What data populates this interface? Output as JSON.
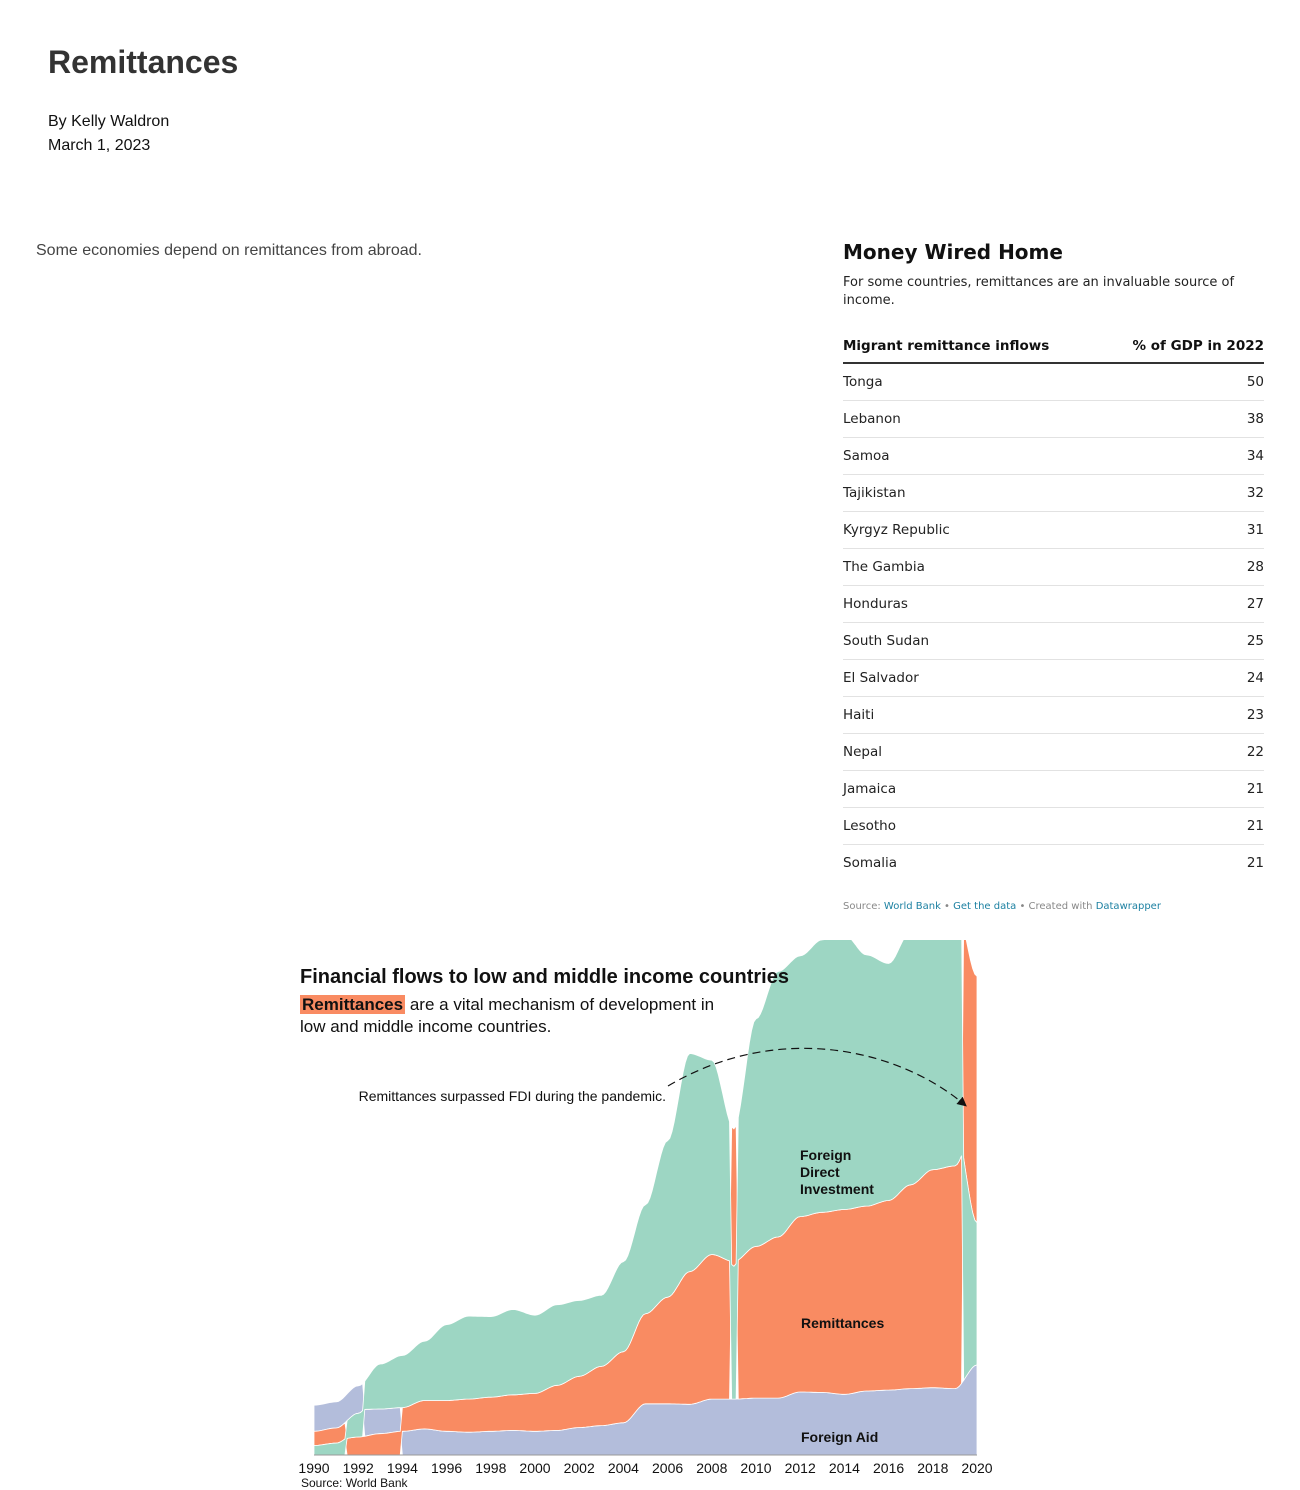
{
  "page": {
    "title": "Remittances",
    "author": "By Kelly Waldron",
    "date": "March 1, 2023",
    "intro": "Some economies depend on remittances from abroad."
  },
  "table": {
    "title": "Money Wired Home",
    "subtitle": "For some countries, remittances are an invaluable source of income.",
    "col1": "Migrant remittance inflows",
    "col2": "% of GDP in 2022",
    "rows": [
      {
        "country": "Tonga",
        "value": "50"
      },
      {
        "country": "Lebanon",
        "value": "38"
      },
      {
        "country": "Samoa",
        "value": "34"
      },
      {
        "country": "Tajikistan",
        "value": "32"
      },
      {
        "country": "Kyrgyz Republic",
        "value": "31"
      },
      {
        "country": "The Gambia",
        "value": "28"
      },
      {
        "country": "Honduras",
        "value": "27"
      },
      {
        "country": "South Sudan",
        "value": "25"
      },
      {
        "country": "El Salvador",
        "value": "24"
      },
      {
        "country": "Haiti",
        "value": "23"
      },
      {
        "country": "Nepal",
        "value": "22"
      },
      {
        "country": "Jamaica",
        "value": "21"
      },
      {
        "country": "Lesotho",
        "value": "21"
      },
      {
        "country": "Somalia",
        "value": "21"
      }
    ],
    "footer": {
      "source_prefix": "Source:",
      "source_link": "World Bank",
      "sep1": "•",
      "data_link": "Get the data",
      "sep2": "• Created with",
      "tool_link": "Datawrapper"
    }
  },
  "chart_data": {
    "type": "area",
    "title": "Financial flows to low and middle income countries",
    "subtitle_highlight": "Remittances",
    "subtitle_rest": "are a vital mechanism of development in low and middle income countries.",
    "annotation": "Remittances surpassed FDI during the pandemic.",
    "source": "Source: World Bank",
    "x_tick_labels": [
      "1990",
      "1992",
      "1994",
      "1996",
      "1998",
      "2000",
      "2002",
      "2004",
      "2006",
      "2008",
      "2010",
      "2012",
      "2014",
      "2016",
      "2018",
      "2020"
    ],
    "stacking": "ranked (largest flow on top)",
    "colors": {
      "Foreign Aid": "#b3bddb",
      "Remittances": "#f98b62",
      "Foreign Direct Investment": "#9dd6c3"
    },
    "x": [
      1990,
      1991,
      1992,
      1993,
      1994,
      1995,
      1996,
      1997,
      1998,
      1999,
      2000,
      2001,
      2002,
      2003,
      2004,
      2005,
      2006,
      2007,
      2008,
      2009,
      2010,
      2011,
      2012,
      2013,
      2014,
      2015,
      2016,
      2017,
      2018,
      2019,
      2020
    ],
    "series": [
      {
        "name": "Foreign Aid",
        "values": [
          55,
          55,
          58,
          52,
          50,
          55,
          50,
          48,
          50,
          52,
          50,
          52,
          58,
          62,
          68,
          108,
          108,
          107,
          118,
          118,
          120,
          120,
          133,
          132,
          128,
          135,
          137,
          140,
          142,
          140,
          190
        ]
      },
      {
        "name": "Remittances",
        "values": [
          30,
          32,
          38,
          45,
          50,
          60,
          65,
          70,
          72,
          75,
          80,
          95,
          108,
          125,
          150,
          190,
          225,
          280,
          305,
          290,
          320,
          340,
          370,
          380,
          390,
          390,
          400,
          430,
          460,
          470,
          520
        ]
      },
      {
        "name": "Foreign Direct Investment",
        "values": [
          20,
          25,
          50,
          95,
          110,
          125,
          160,
          175,
          170,
          180,
          165,
          170,
          160,
          150,
          190,
          230,
          330,
          460,
          410,
          280,
          480,
          560,
          550,
          575,
          580,
          530,
          500,
          535,
          560,
          560,
          300
        ]
      }
    ],
    "series_labels": {
      "fdi": [
        "Foreign",
        "Direct",
        "Investment"
      ],
      "remittances": "Remittances",
      "aid": "Foreign Aid"
    }
  }
}
